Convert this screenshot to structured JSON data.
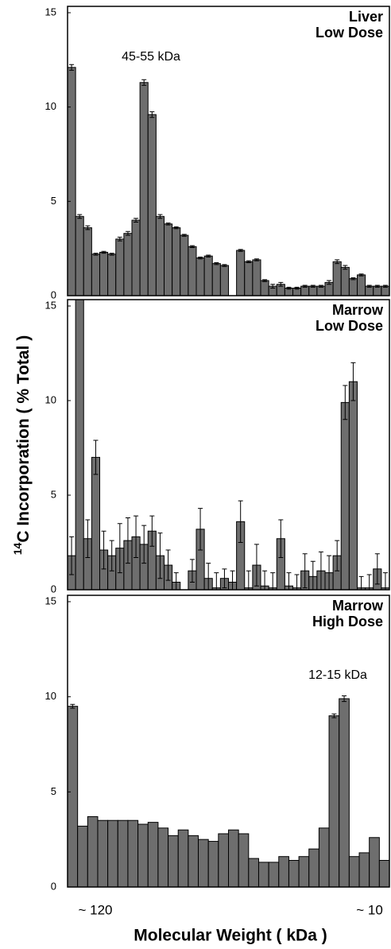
{
  "chart_data": [
    {
      "type": "bar",
      "title": [
        "Liver",
        "Low Dose"
      ],
      "annotation": "45-55 kDa",
      "color": "#6e6e6e",
      "categories": [
        null,
        null,
        null,
        null,
        null,
        null,
        null,
        null,
        null,
        null,
        null,
        null,
        null,
        null,
        null,
        null,
        null,
        null,
        null,
        null,
        null,
        null,
        null,
        null,
        null,
        null,
        null,
        null,
        null,
        null,
        null,
        null,
        null,
        null,
        null,
        null,
        null,
        null,
        null,
        null
      ],
      "values": [
        12.1,
        4.2,
        3.6,
        2.2,
        2.3,
        2.2,
        3.0,
        3.3,
        4.0,
        11.3,
        9.6,
        4.2,
        3.8,
        3.6,
        3.2,
        2.6,
        2.0,
        2.1,
        1.7,
        1.6,
        0,
        2.4,
        1.8,
        1.9,
        0.8,
        0.5,
        0.6,
        0.4,
        0.4,
        0.5,
        0.5,
        0.5,
        0.7,
        1.8,
        1.5,
        0.9,
        1.1,
        0.5,
        0.5,
        0.5
      ],
      "errors": [
        0.15,
        0.1,
        0.1,
        0.05,
        0.05,
        0.05,
        0.1,
        0.1,
        0.1,
        0.15,
        0.15,
        0.1,
        0.05,
        0.05,
        0.05,
        0.05,
        0.05,
        0.05,
        0.05,
        0.05,
        null,
        0.05,
        0.05,
        0.05,
        0.05,
        0.1,
        0.1,
        0.05,
        0.05,
        0.05,
        0.05,
        0.05,
        0.1,
        0.1,
        0.1,
        0.05,
        0.05,
        0.05,
        0.05,
        0.05
      ],
      "ylim": [
        0,
        15
      ],
      "yticks": [
        0,
        5,
        10,
        15
      ]
    },
    {
      "type": "bar",
      "title": [
        "Marrow",
        "Low Dose"
      ],
      "color": "#6e6e6e",
      "categories": [
        null,
        null,
        null,
        null,
        null,
        null,
        null,
        null,
        null,
        null,
        null,
        null,
        null,
        null,
        null,
        null,
        null,
        null,
        null,
        null,
        null,
        null,
        null,
        null,
        null,
        null,
        null,
        null,
        null,
        null,
        null,
        null,
        null,
        null,
        null,
        null,
        null,
        null,
        null,
        null
      ],
      "values": [
        1.8,
        16,
        2.7,
        7.0,
        2.1,
        1.8,
        2.2,
        2.6,
        2.8,
        2.4,
        3.1,
        1.8,
        1.3,
        0.4,
        0,
        1.0,
        3.2,
        0.6,
        0.1,
        0.6,
        0.4,
        3.6,
        0.1,
        1.3,
        0.2,
        0.1,
        2.7,
        0.2,
        0.1,
        1.0,
        0.7,
        1.0,
        0.9,
        1.8,
        9.9,
        11.0,
        0.1,
        0.1,
        1.1,
        0.1
      ],
      "errors": [
        1.0,
        null,
        1.0,
        0.9,
        1.0,
        0.8,
        1.3,
        1.2,
        1.1,
        1.0,
        0.8,
        1.2,
        0.8,
        0.5,
        null,
        0.6,
        1.1,
        0.8,
        0.8,
        0.5,
        0.6,
        1.1,
        0.9,
        1.1,
        0.8,
        0.8,
        1.0,
        0.7,
        0.7,
        0.9,
        0.8,
        1.0,
        0.9,
        0.8,
        0.9,
        1.0,
        0.6,
        0.7,
        0.8,
        0.8
      ],
      "ylim": [
        0,
        15
      ],
      "yticks": [
        0,
        5,
        10,
        15
      ]
    },
    {
      "type": "bar",
      "title": [
        "Marrow",
        "High Dose"
      ],
      "annotation": "12-15 kDa",
      "color": "#6e6e6e",
      "categories": [
        null,
        null,
        null,
        null,
        null,
        null,
        null,
        null,
        null,
        null,
        null,
        null,
        null,
        null,
        null,
        null,
        null,
        null,
        null,
        null,
        null,
        null,
        null,
        null,
        null,
        null,
        null,
        null,
        null,
        null,
        null,
        null
      ],
      "values": [
        9.5,
        3.2,
        3.7,
        3.5,
        3.5,
        3.5,
        3.5,
        3.3,
        3.4,
        3.1,
        2.7,
        3.0,
        2.7,
        2.5,
        2.4,
        2.8,
        3.0,
        2.8,
        1.5,
        1.3,
        1.3,
        1.6,
        1.4,
        1.6,
        2.0,
        3.1,
        9.0,
        9.9,
        1.6,
        1.8,
        2.6,
        1.4
      ],
      "errors": [
        0.1,
        null,
        null,
        null,
        null,
        null,
        null,
        null,
        null,
        null,
        null,
        null,
        null,
        null,
        null,
        null,
        null,
        null,
        null,
        null,
        null,
        null,
        null,
        null,
        null,
        null,
        0.1,
        0.15,
        null,
        null,
        null,
        null
      ],
      "ylim": [
        0,
        15
      ],
      "yticks": [
        0,
        5,
        10,
        15
      ]
    }
  ],
  "ylabel": {
    "superscript": "14",
    "text": "C Incorporation ( % Total )"
  },
  "x_end_labels": [
    "~ 120",
    "~ 10"
  ],
  "xlabel": "Molecular Weight ( kDa )"
}
